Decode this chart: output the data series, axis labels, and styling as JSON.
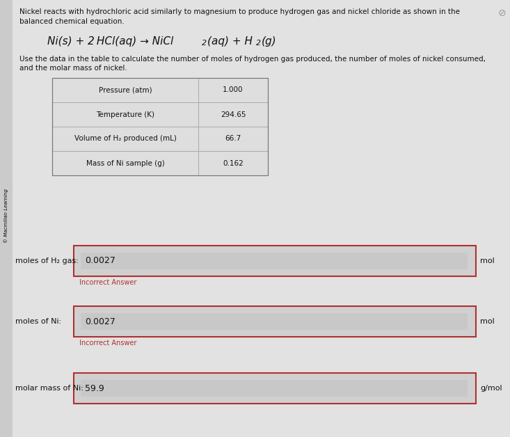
{
  "bg_color": "#cbcbcb",
  "content_bg": "#e8e8e8",
  "title_text1": "Nickel reacts with hydrochloric acid similarly to magnesium to produce hydrogen gas and nickel chloride as shown in the",
  "title_text2": "balanced chemical equation.",
  "equation_parts": [
    {
      "text": "Ni(s) + 2 HCl(aq) ",
      "style": "italic"
    },
    {
      "text": "→",
      "style": "normal"
    },
    {
      "text": " NiCl",
      "style": "italic"
    },
    {
      "text": "2",
      "style": "sub_italic"
    },
    {
      "text": "(aq) + H",
      "style": "italic"
    },
    {
      "text": "2",
      "style": "sub_italic"
    },
    {
      "text": "(g)",
      "style": "italic"
    }
  ],
  "instruction1": "Use the data in the table to calculate the number of moles of hydrogen gas produced, the number of moles of nickel consumed,",
  "instruction2": "and the molar mass of nickel.",
  "sidebar_text": "© Macmillan Learning",
  "table_rows": [
    [
      "Pressure (atm)",
      "1.000"
    ],
    [
      "Temperature (K)",
      "294.65"
    ],
    [
      "Volume of H₂ produced (mL)",
      "66.7"
    ],
    [
      "Mass of Ni sample (g)",
      "0.162"
    ]
  ],
  "input_boxes": [
    {
      "label": "moles of H₂ gas:",
      "value": "0.0027",
      "unit": "mol",
      "incorrect": true,
      "incorrect_text": "Incorrect Answer"
    },
    {
      "label": "moles of Ni:",
      "value": "0.0027",
      "unit": "mol",
      "incorrect": true,
      "incorrect_text": "Incorrect Answer"
    },
    {
      "label": "molar mass of Ni:",
      "value": "59.9",
      "unit": "g/mol",
      "incorrect": false,
      "incorrect_text": ""
    }
  ]
}
